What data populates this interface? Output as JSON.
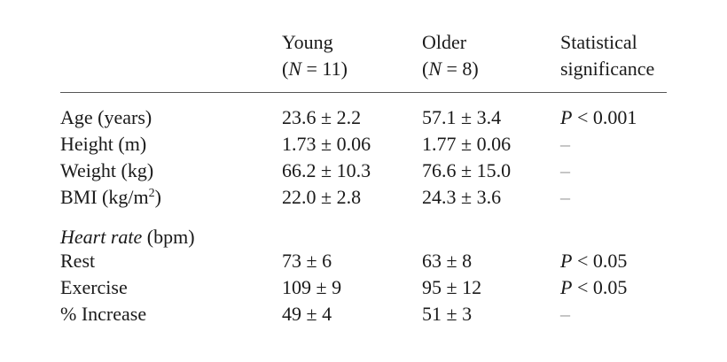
{
  "table": {
    "columns": [
      {
        "lines": [
          [
            {
              "roman": "Young"
            }
          ],
          [
            {
              "roman": "("
            },
            {
              "italic": "N"
            },
            {
              "roman": " = 11)"
            }
          ]
        ]
      },
      {
        "lines": [
          [
            {
              "roman": "Older"
            }
          ],
          [
            {
              "roman": "("
            },
            {
              "italic": "N"
            },
            {
              "roman": " = 8)"
            }
          ]
        ]
      },
      {
        "lines": [
          [
            {
              "roman": "Statistical"
            }
          ],
          [
            {
              "roman": "significance"
            }
          ]
        ]
      }
    ],
    "rows": [
      {
        "label": [
          {
            "roman": "Age (years)"
          }
        ],
        "cells": [
          [
            {
              "roman": "23.6 ± 2.2"
            }
          ],
          [
            {
              "roman": "57.1 ± 3.4"
            }
          ],
          [
            {
              "italic": "P"
            },
            {
              "roman": " < 0.001"
            }
          ]
        ]
      },
      {
        "label": [
          {
            "roman": "Height (m)"
          }
        ],
        "cells": [
          [
            {
              "roman": "1.73 ± 0.06"
            }
          ],
          [
            {
              "roman": "1.77 ± 0.06"
            }
          ],
          [
            {
              "muted": "–"
            }
          ]
        ]
      },
      {
        "label": [
          {
            "roman": "Weight (kg)"
          }
        ],
        "cells": [
          [
            {
              "roman": "66.2 ± 10.3"
            }
          ],
          [
            {
              "roman": "76.6 ± 15.0"
            }
          ],
          [
            {
              "muted": "–"
            }
          ]
        ]
      },
      {
        "label": [
          {
            "roman": "BMI (kg/m"
          },
          {
            "sup": "2"
          },
          {
            "roman": ")"
          }
        ],
        "cells": [
          [
            {
              "roman": "22.0 ± 2.8"
            }
          ],
          [
            {
              "roman": "24.3 ± 3.6"
            }
          ],
          [
            {
              "muted": "–"
            }
          ]
        ]
      },
      {
        "label": [
          {
            "italic": "Heart rate"
          },
          {
            "roman": " (bpm)"
          }
        ],
        "cells": []
      },
      {
        "label": [
          {
            "roman": "Rest"
          }
        ],
        "cells": [
          [
            {
              "roman": "73 ± 6"
            }
          ],
          [
            {
              "roman": "63 ± 8"
            }
          ],
          [
            {
              "italic": "P"
            },
            {
              "roman": " < 0.05"
            }
          ]
        ]
      },
      {
        "label": [
          {
            "roman": "Exercise"
          }
        ],
        "cells": [
          [
            {
              "roman": "109 ± 9"
            }
          ],
          [
            {
              "roman": "95 ± 12"
            }
          ],
          [
            {
              "italic": "P"
            },
            {
              "roman": " < 0.05"
            }
          ]
        ]
      },
      {
        "label": [
          {
            "roman": "% Increase"
          }
        ],
        "cells": [
          [
            {
              "roman": "49 ± 4"
            }
          ],
          [
            {
              "roman": "51 ± 3"
            }
          ],
          [
            {
              "muted": "–"
            }
          ]
        ]
      }
    ]
  }
}
